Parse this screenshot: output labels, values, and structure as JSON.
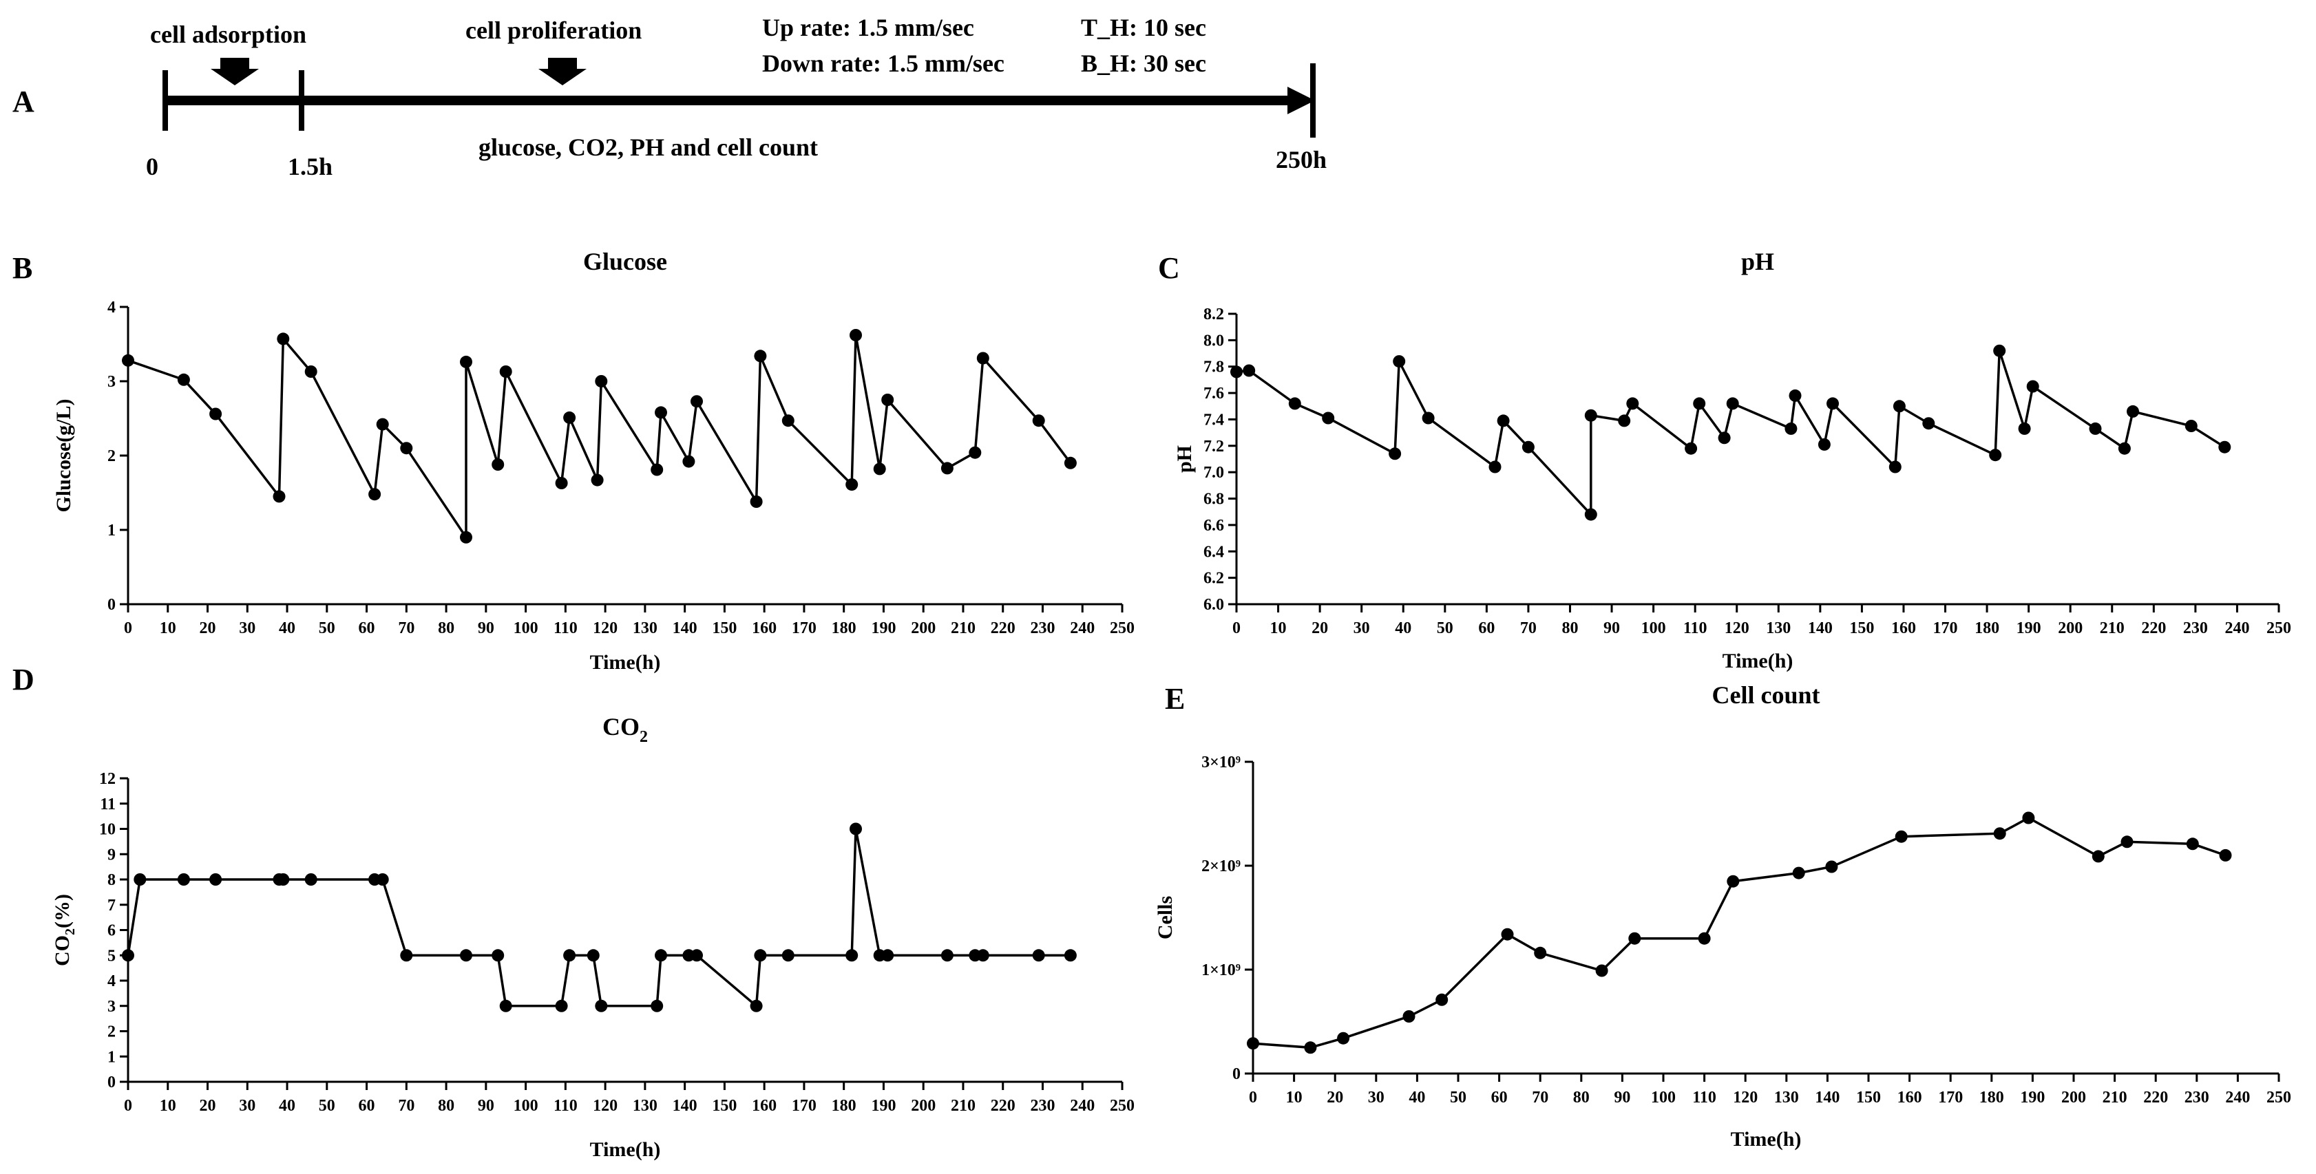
{
  "timeline": {
    "panel_label": "A",
    "event_cell_adsorption": "cell adsorption",
    "event_cell_proliferation": "cell proliferation",
    "up_rate": "Up rate: 1.5 mm/sec",
    "down_rate": "Down rate: 1.5 mm/sec",
    "t_h": "T_H: 10 sec",
    "b_h": "B_H: 30 sec",
    "measurements": "glucose, CO2, PH and cell count",
    "time_start": "0",
    "time_mid": "1.5h",
    "time_end": "250h"
  },
  "chart_data": [
    {
      "id": "glucose",
      "panel_label": "B",
      "type": "line",
      "title": "Glucose",
      "xlabel": "Time(h)",
      "ylabel": "Glucose(g/L)",
      "xlim": [
        0,
        250
      ],
      "ylim": [
        0,
        4
      ],
      "xticks": [
        "0",
        "10",
        "20",
        "30",
        "40",
        "50",
        "60",
        "70",
        "80",
        "90",
        "100",
        "110",
        "120",
        "130",
        "140",
        "150",
        "160",
        "170",
        "180",
        "190",
        "200",
        "210",
        "220",
        "230",
        "240",
        "250"
      ],
      "yticks": [
        "0",
        "1",
        "2",
        "3",
        "4"
      ],
      "x": [
        0,
        14,
        22,
        38,
        39,
        46,
        62,
        64,
        70,
        85,
        85,
        93,
        95,
        109,
        111,
        118,
        119,
        133,
        134,
        141,
        143,
        158,
        159,
        166,
        182,
        183,
        189,
        191,
        206,
        213,
        215,
        229,
        237
      ],
      "y": [
        3.28,
        3.02,
        2.56,
        1.45,
        3.57,
        3.13,
        1.48,
        2.42,
        2.1,
        0.9,
        3.26,
        1.88,
        3.13,
        1.63,
        2.51,
        1.67,
        3.0,
        1.81,
        2.58,
        1.92,
        2.73,
        1.38,
        3.34,
        2.47,
        1.61,
        3.62,
        1.82,
        2.75,
        1.83,
        2.04,
        3.31,
        2.47,
        1.9
      ]
    },
    {
      "id": "ph",
      "panel_label": "C",
      "type": "line",
      "title": "pH",
      "xlabel": "Time(h)",
      "ylabel": "pH",
      "xlim": [
        0,
        250
      ],
      "ylim": [
        6.0,
        8.2
      ],
      "xticks": [
        "0",
        "10",
        "20",
        "30",
        "40",
        "50",
        "60",
        "70",
        "80",
        "90",
        "100",
        "110",
        "120",
        "130",
        "140",
        "150",
        "160",
        "170",
        "180",
        "190",
        "200",
        "210",
        "220",
        "230",
        "240",
        "250"
      ],
      "yticks": [
        "6.0",
        "6.2",
        "6.4",
        "6.6",
        "6.8",
        "7.0",
        "7.2",
        "7.4",
        "7.6",
        "7.8",
        "8.0",
        "8.2"
      ],
      "x": [
        0,
        3,
        14,
        22,
        38,
        39,
        46,
        62,
        64,
        70,
        85,
        85,
        93,
        95,
        109,
        111,
        117,
        119,
        133,
        134,
        141,
        143,
        158,
        159,
        166,
        182,
        183,
        189,
        191,
        206,
        213,
        215,
        229,
        237
      ],
      "y": [
        7.76,
        7.77,
        7.52,
        7.41,
        7.14,
        7.84,
        7.41,
        7.04,
        7.39,
        7.19,
        6.68,
        7.43,
        7.39,
        7.52,
        7.18,
        7.52,
        7.26,
        7.52,
        7.33,
        7.58,
        7.21,
        7.52,
        7.04,
        7.5,
        7.37,
        7.13,
        7.92,
        7.33,
        7.65,
        7.33,
        7.18,
        7.46,
        7.35,
        7.19
      ]
    },
    {
      "id": "co2",
      "panel_label": "D",
      "type": "line",
      "title": "CO",
      "title_subscript": "2",
      "xlabel": "Time(h)",
      "ylabel": "CO",
      "ylabel_subscript": "2",
      "ylabel_suffix": "(%)",
      "xlim": [
        0,
        250
      ],
      "ylim": [
        0,
        12
      ],
      "xticks": [
        "0",
        "10",
        "20",
        "30",
        "40",
        "50",
        "60",
        "70",
        "80",
        "90",
        "100",
        "110",
        "120",
        "130",
        "140",
        "150",
        "160",
        "170",
        "180",
        "190",
        "200",
        "210",
        "220",
        "230",
        "240",
        "250"
      ],
      "yticks": [
        "0",
        "1",
        "2",
        "3",
        "4",
        "5",
        "6",
        "7",
        "8",
        "9",
        "10",
        "11",
        "12"
      ],
      "x": [
        0,
        3,
        14,
        22,
        38,
        39,
        46,
        62,
        64,
        70,
        85,
        93,
        95,
        109,
        111,
        117,
        119,
        133,
        134,
        141,
        143,
        158,
        159,
        166,
        182,
        183,
        189,
        191,
        206,
        213,
        215,
        229,
        237
      ],
      "y": [
        5,
        8,
        8,
        8,
        8,
        8,
        8,
        8,
        8,
        5,
        5,
        5,
        3,
        3,
        5,
        5,
        3,
        3,
        5,
        5,
        5,
        3,
        5,
        5,
        5,
        10,
        5,
        5,
        5,
        5,
        5,
        5,
        5
      ]
    },
    {
      "id": "cells",
      "panel_label": "E",
      "type": "line",
      "title": "Cell count",
      "xlabel": "Time(h)",
      "ylabel": "Cells",
      "xlim": [
        0,
        250
      ],
      "ylim": [
        0,
        3
      ],
      "y_unit": "×10^9",
      "xticks": [
        "0",
        "10",
        "20",
        "30",
        "40",
        "50",
        "60",
        "70",
        "80",
        "90",
        "100",
        "110",
        "120",
        "130",
        "140",
        "150",
        "160",
        "170",
        "180",
        "190",
        "200",
        "210",
        "220",
        "230",
        "240",
        "250"
      ],
      "yticks": [
        "0",
        "1×10⁹",
        "2×10⁹",
        "3×10⁹"
      ],
      "x": [
        0,
        14,
        22,
        38,
        46,
        62,
        70,
        85,
        93,
        110,
        117,
        133,
        141,
        158,
        182,
        189,
        206,
        213,
        229,
        237
      ],
      "y": [
        0.29,
        0.25,
        0.34,
        0.55,
        0.71,
        1.34,
        1.16,
        0.99,
        1.3,
        1.3,
        1.85,
        1.93,
        1.99,
        2.28,
        2.31,
        2.46,
        2.09,
        2.23,
        2.21,
        2.1
      ]
    }
  ]
}
